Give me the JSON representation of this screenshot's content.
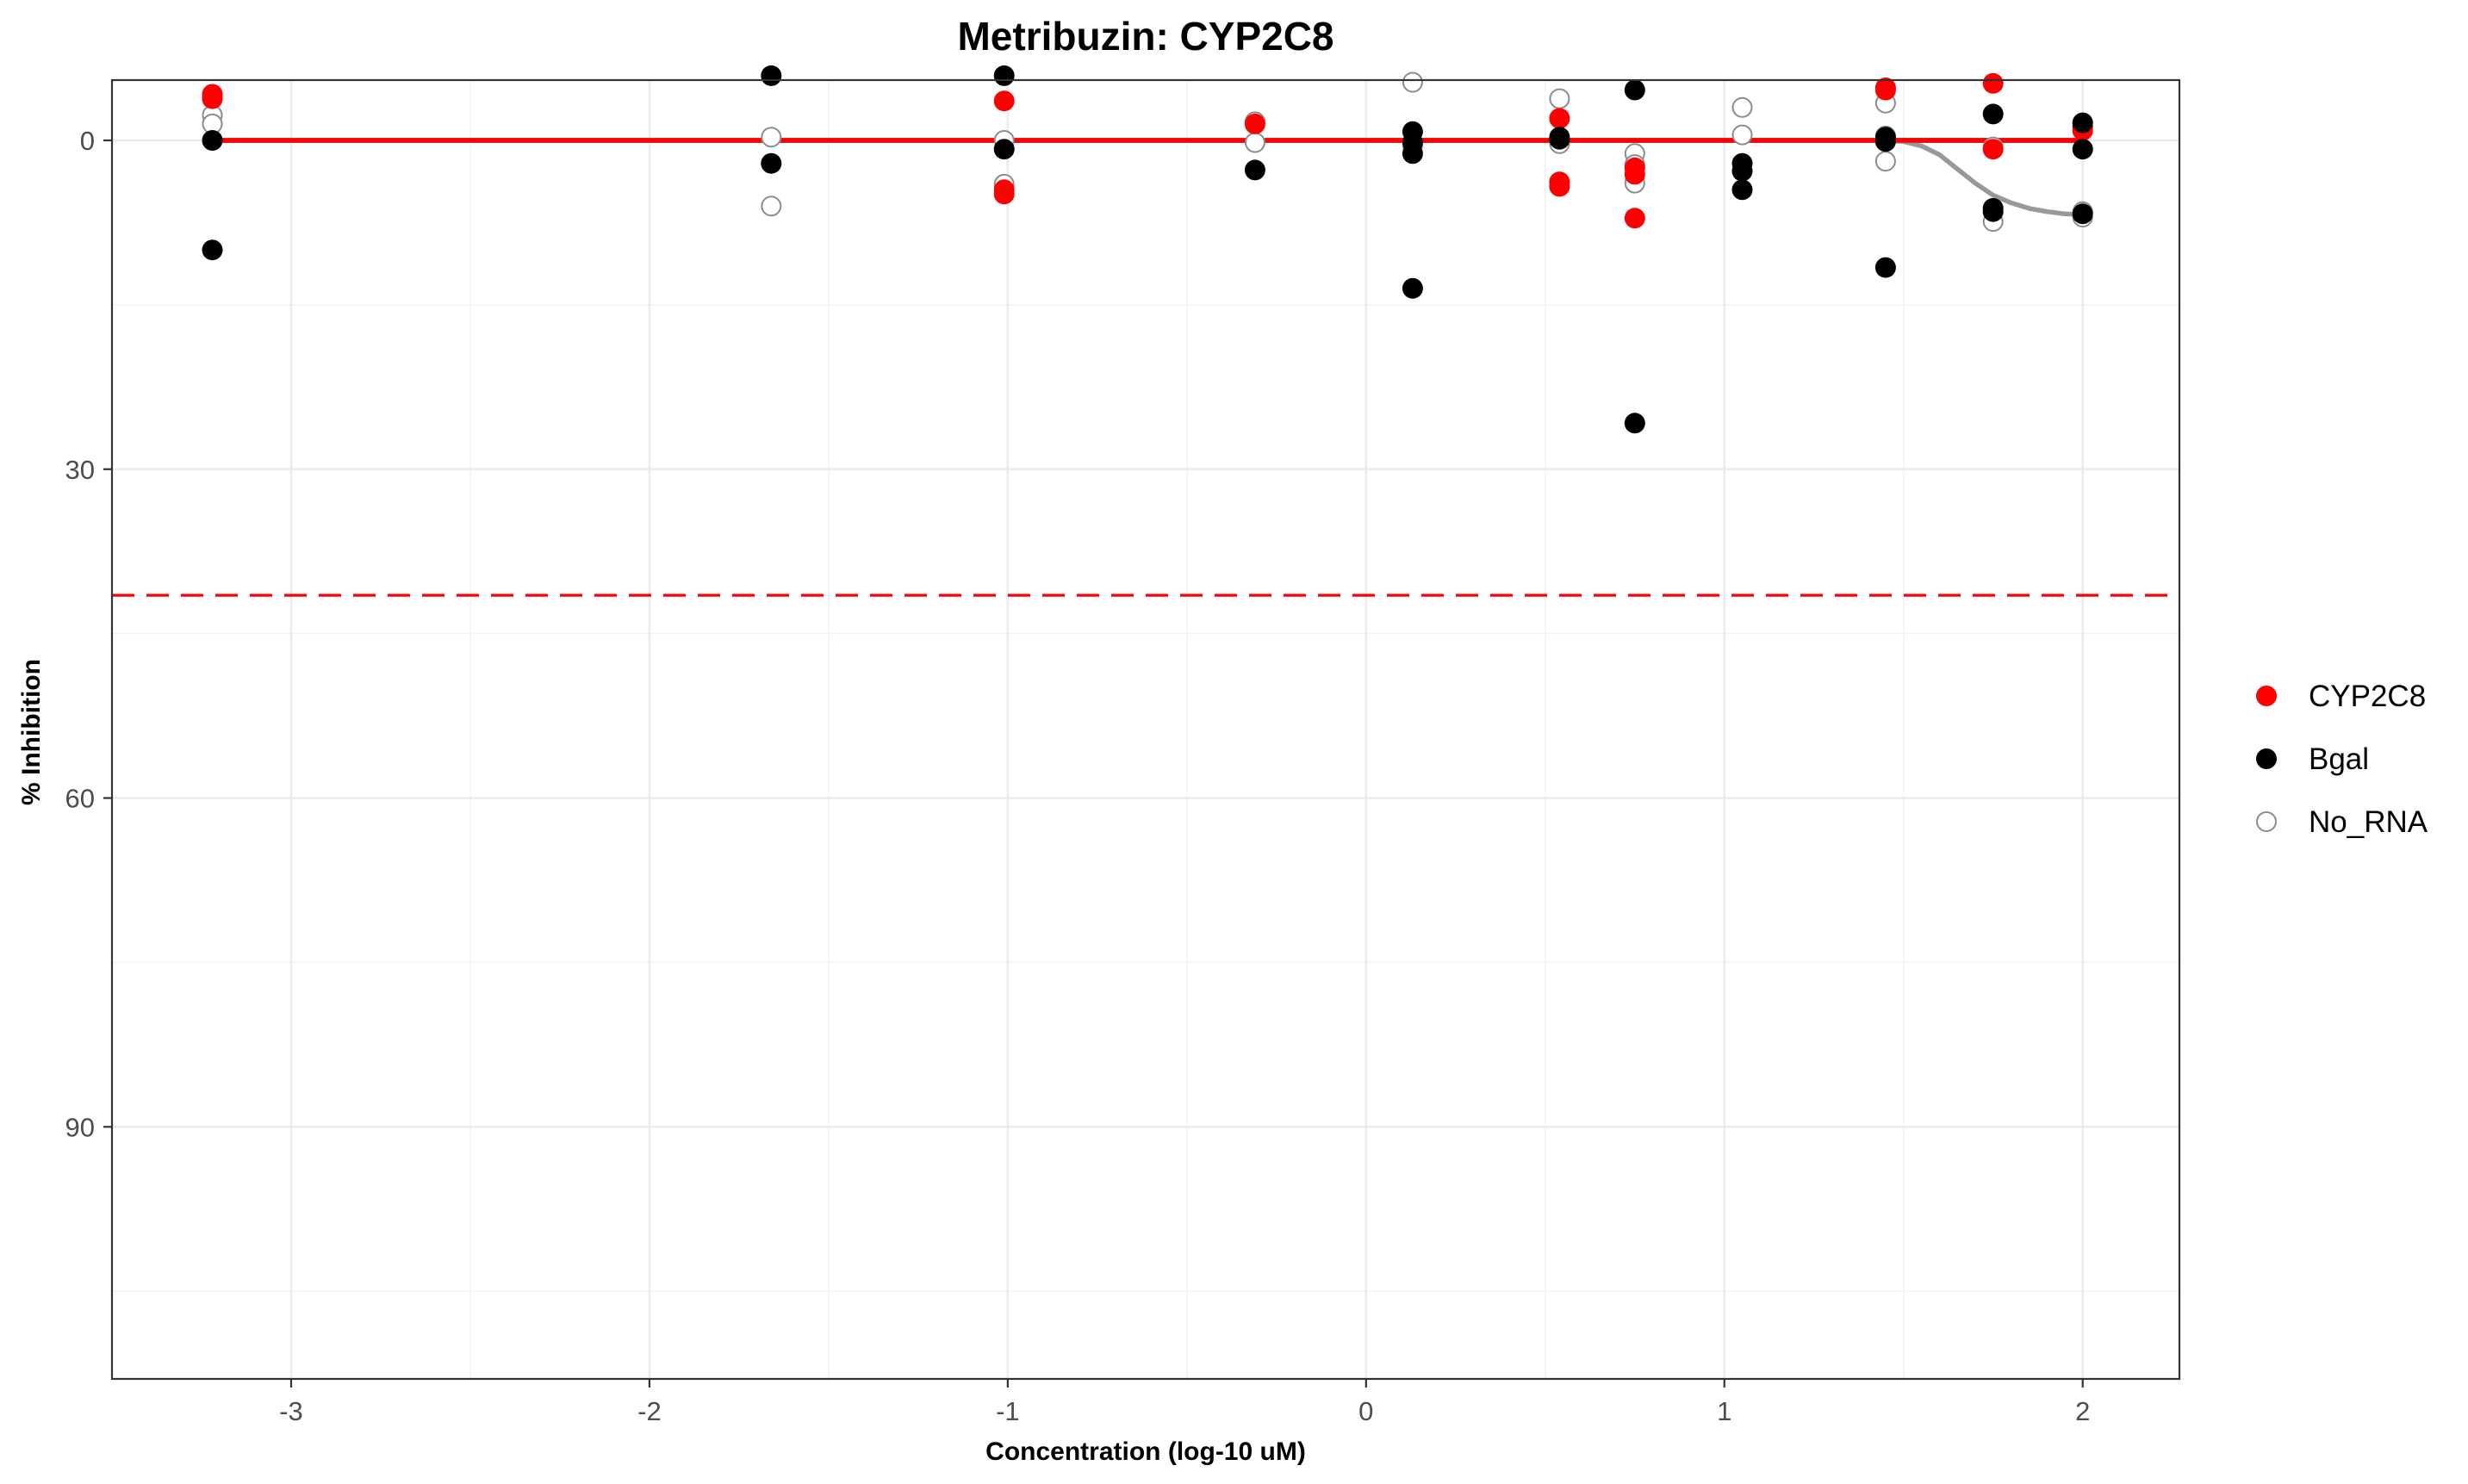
{
  "chart_data": {
    "type": "scatter",
    "title": "Metribuzin: CYP2C8",
    "xlabel": "Concentration (log-10 uM)",
    "ylabel": "% Inhibition",
    "xlim": [
      -3.5,
      2.27
    ],
    "ylim": [
      113,
      -5.5
    ],
    "y_reversed": true,
    "x_ticks": [
      -3,
      -2,
      -1,
      0,
      1,
      2
    ],
    "x_tick_labels": [
      "-3",
      "-2",
      "-1",
      "0",
      "1",
      "2"
    ],
    "y_ticks": [
      0,
      30,
      60,
      90
    ],
    "y_tick_labels": [
      "0",
      "30",
      "60",
      "90"
    ],
    "grid": true,
    "legend_position": "right",
    "threshold_line": {
      "y": 41.5,
      "color": "#ff0000",
      "style": "dashed"
    },
    "series": [
      {
        "name": "CYP2C8",
        "color": "#ff0000",
        "marker": "filled-circle",
        "points": [
          {
            "x": -3.22,
            "y": -4.2
          },
          {
            "x": -3.22,
            "y": -3.8
          },
          {
            "x": -1.01,
            "y": -3.6
          },
          {
            "x": -1.01,
            "y": 4.5
          },
          {
            "x": -1.01,
            "y": 4.9
          },
          {
            "x": -0.31,
            "y": -1.5
          },
          {
            "x": 0.54,
            "y": -2.0
          },
          {
            "x": 0.54,
            "y": 3.8
          },
          {
            "x": 0.54,
            "y": 4.2
          },
          {
            "x": 0.75,
            "y": 2.5
          },
          {
            "x": 0.75,
            "y": 3.1
          },
          {
            "x": 0.75,
            "y": 7.1
          },
          {
            "x": 1.45,
            "y": -4.8
          },
          {
            "x": 1.45,
            "y": -4.6
          },
          {
            "x": 1.75,
            "y": -5.2
          },
          {
            "x": 1.75,
            "y": 0.8
          },
          {
            "x": 2.0,
            "y": -0.9
          },
          {
            "x": 2.0,
            "y": -1.2
          }
        ],
        "fit": [
          {
            "x": -3.22,
            "y": 0
          },
          {
            "x": 2.0,
            "y": 0
          }
        ]
      },
      {
        "name": "Bgal",
        "color": "#000000",
        "marker": "filled-circle",
        "points": [
          {
            "x": -3.22,
            "y": 0.0
          },
          {
            "x": -3.22,
            "y": 10.0
          },
          {
            "x": -1.66,
            "y": -5.9
          },
          {
            "x": -1.66,
            "y": 2.1
          },
          {
            "x": -1.01,
            "y": -5.9
          },
          {
            "x": -1.01,
            "y": 0.8
          },
          {
            "x": -0.31,
            "y": 2.7
          },
          {
            "x": 0.13,
            "y": -0.8
          },
          {
            "x": 0.13,
            "y": 0.2
          },
          {
            "x": 0.13,
            "y": 1.2
          },
          {
            "x": 0.13,
            "y": 13.5
          },
          {
            "x": 0.54,
            "y": -0.3
          },
          {
            "x": 0.54,
            "y": -0.1
          },
          {
            "x": 0.75,
            "y": -4.6
          },
          {
            "x": 0.75,
            "y": 25.8
          },
          {
            "x": 1.05,
            "y": 2.1
          },
          {
            "x": 1.05,
            "y": 2.8
          },
          {
            "x": 1.05,
            "y": 4.5
          },
          {
            "x": 1.45,
            "y": -0.3
          },
          {
            "x": 1.45,
            "y": 0.1
          },
          {
            "x": 1.45,
            "y": 11.6
          },
          {
            "x": 1.75,
            "y": -2.4
          },
          {
            "x": 1.75,
            "y": 6.2
          },
          {
            "x": 1.75,
            "y": 6.5
          },
          {
            "x": 2.0,
            "y": -1.6
          },
          {
            "x": 2.0,
            "y": 0.8
          },
          {
            "x": 2.0,
            "y": 6.7
          }
        ],
        "fit": [
          {
            "x": -3.22,
            "y": 0
          },
          {
            "x": 2.0,
            "y": 0
          }
        ]
      },
      {
        "name": "No_RNA",
        "color": "#8c8c8c",
        "marker": "open-circle",
        "points": [
          {
            "x": -3.22,
            "y": -2.3
          },
          {
            "x": -3.22,
            "y": -1.5
          },
          {
            "x": -1.66,
            "y": -0.3
          },
          {
            "x": -1.66,
            "y": 6.0
          },
          {
            "x": -1.01,
            "y": 0.0
          },
          {
            "x": -1.01,
            "y": 4.0
          },
          {
            "x": -0.31,
            "y": -1.7
          },
          {
            "x": -0.31,
            "y": 0.2
          },
          {
            "x": 0.13,
            "y": -5.3
          },
          {
            "x": 0.13,
            "y": 0.5
          },
          {
            "x": 0.54,
            "y": -3.8
          },
          {
            "x": 0.54,
            "y": 0.3
          },
          {
            "x": 0.54,
            "y": 3.8
          },
          {
            "x": 0.75,
            "y": 1.2
          },
          {
            "x": 0.75,
            "y": 2.2
          },
          {
            "x": 0.75,
            "y": 3.9
          },
          {
            "x": 1.05,
            "y": -3.0
          },
          {
            "x": 1.05,
            "y": -0.5
          },
          {
            "x": 1.45,
            "y": -3.4
          },
          {
            "x": 1.45,
            "y": -0.4
          },
          {
            "x": 1.45,
            "y": 1.9
          },
          {
            "x": 1.75,
            "y": 0.6
          },
          {
            "x": 1.75,
            "y": 7.4
          },
          {
            "x": 2.0,
            "y": 6.5
          },
          {
            "x": 2.0,
            "y": 7.0
          }
        ],
        "fit": [
          {
            "x": -3.22,
            "y": 0
          },
          {
            "x": 1.45,
            "y": 0
          },
          {
            "x": 1.5,
            "y": 0.1
          },
          {
            "x": 1.55,
            "y": 0.5
          },
          {
            "x": 1.6,
            "y": 1.3
          },
          {
            "x": 1.65,
            "y": 2.6
          },
          {
            "x": 1.7,
            "y": 3.9
          },
          {
            "x": 1.75,
            "y": 5.0
          },
          {
            "x": 1.8,
            "y": 5.7
          },
          {
            "x": 1.85,
            "y": 6.2
          },
          {
            "x": 1.9,
            "y": 6.5
          },
          {
            "x": 1.95,
            "y": 6.7
          },
          {
            "x": 2.0,
            "y": 6.8
          }
        ]
      }
    ]
  }
}
